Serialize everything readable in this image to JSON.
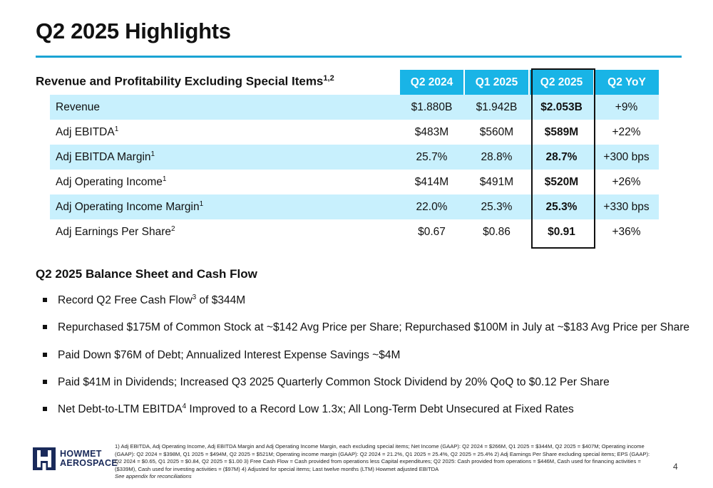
{
  "slide": {
    "title": "Q2 2025 Highlights",
    "page_number": "4",
    "accent_color": "#1aa3d4",
    "header_color": "#19b4e6",
    "shade_color": "#c8f0fd"
  },
  "table_section": {
    "title": "Revenue and Profitability Excluding Special Items",
    "title_sup": "1,2",
    "columns": [
      "Q2 2024",
      "Q1 2025",
      "Q2 2025",
      "Q2 YoY"
    ],
    "rows": [
      {
        "label": "Revenue",
        "sup": "",
        "values": [
          "$1.880B",
          "$1.942B",
          "$2.053B",
          "+9%"
        ]
      },
      {
        "label": "Adj EBITDA",
        "sup": "1",
        "values": [
          "$483M",
          "$560M",
          "$589M",
          "+22%"
        ]
      },
      {
        "label": "Adj EBITDA Margin",
        "sup": "1",
        "values": [
          "25.7%",
          "28.8%",
          "28.7%",
          "+300 bps"
        ]
      },
      {
        "label": "Adj Operating Income",
        "sup": "1",
        "values": [
          "$414M",
          "$491M",
          "$520M",
          "+26%"
        ]
      },
      {
        "label": "Adj Operating Income Margin",
        "sup": "1",
        "values": [
          "22.0%",
          "25.3%",
          "25.3%",
          "+330 bps"
        ]
      },
      {
        "label": "Adj Earnings Per Share",
        "sup": "2",
        "values": [
          "$0.67",
          "$0.86",
          "$0.91",
          "+36%"
        ]
      }
    ]
  },
  "balance_section": {
    "title": "Q2 2025 Balance Sheet and Cash Flow",
    "bullets": [
      {
        "pre": "Record Q2 Free Cash Flow",
        "sup": "3",
        "post": " of $344M"
      },
      {
        "pre": "Repurchased $175M of Common Stock at ~$142 Avg Price per Share; Repurchased $100M in July at ~$183 Avg Price per Share",
        "sup": "",
        "post": ""
      },
      {
        "pre": "Paid Down $76M of Debt; Annualized Interest Expense Savings ~$4M",
        "sup": "",
        "post": ""
      },
      {
        "pre": "Paid $41M in Dividends; Increased Q3 2025 Quarterly Common Stock Dividend by 20% QoQ to $0.12 Per Share",
        "sup": "",
        "post": ""
      },
      {
        "pre": "Net Debt-to-LTM EBITDA",
        "sup": "4",
        "post": " Improved to a Record Low 1.3x; All Long-Term Debt Unsecured at Fixed Rates"
      }
    ]
  },
  "logo": {
    "line1": "HOWMET",
    "line2": "AEROSPACE",
    "icon": "howmet-logo-icon"
  },
  "footnote": {
    "text": "1) Adj EBITDA, Adj Operating Income, Adj EBITDA Margin and Adj Operating Income Margin, each excluding special items; Net Income (GAAP): Q2 2024 = $266M, Q1 2025 = $344M, Q2 2025 = $407M; Operating income (GAAP): Q2 2024 = $398M, Q1 2025 = $494M, Q2 2025 = $521M; Operating income margin (GAAP): Q2 2024 = 21.2%, Q1 2025 = 25.4%, Q2 2025 = 25.4%    2) Adj Earnings Per Share excluding special items; EPS (GAAP): Q2 2024 = $0.65, Q1 2025 = $0.84, Q2 2025 = $1.00    3) Free Cash Flow = Cash provided from operations less Capital expenditures; Q2 2025: Cash provided from operations = $446M, Cash used for financing activities = ($339M), Cash used for investing activities = ($97M)    4) Adjusted for special items; Last twelve months (LTM) Howmet adjusted EBITDA",
    "appendix": "See appendix for reconciliations"
  }
}
